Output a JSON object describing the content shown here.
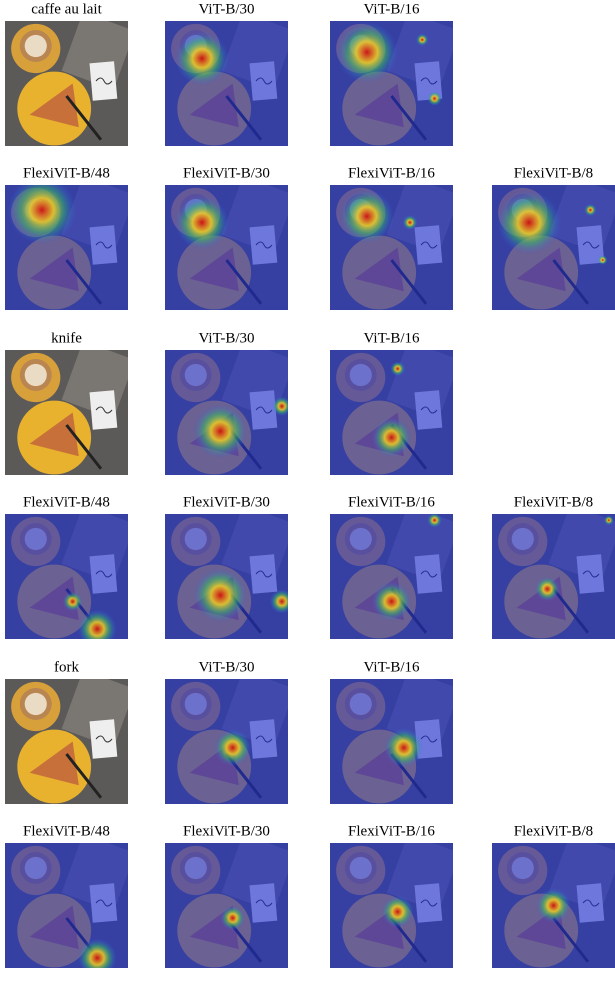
{
  "rows": [
    {
      "labels": [
        "caffe au lait",
        "ViT-B/30",
        "ViT-B/16"
      ]
    },
    {
      "labels": [
        "FlexiViT-B/48",
        "FlexiViT-B/30",
        "FlexiViT-B/16",
        "FlexiViT-B/8"
      ]
    },
    {
      "labels": [
        "knife",
        "ViT-B/30",
        "ViT-B/16"
      ]
    },
    {
      "labels": [
        "FlexiViT-B/48",
        "FlexiViT-B/30",
        "FlexiViT-B/16",
        "FlexiViT-B/8"
      ]
    },
    {
      "labels": [
        "fork",
        "ViT-B/30",
        "ViT-B/16"
      ]
    },
    {
      "labels": [
        "FlexiViT-B/48",
        "FlexiViT-B/30",
        "FlexiViT-B/16",
        "FlexiViT-B/8"
      ]
    }
  ]
}
